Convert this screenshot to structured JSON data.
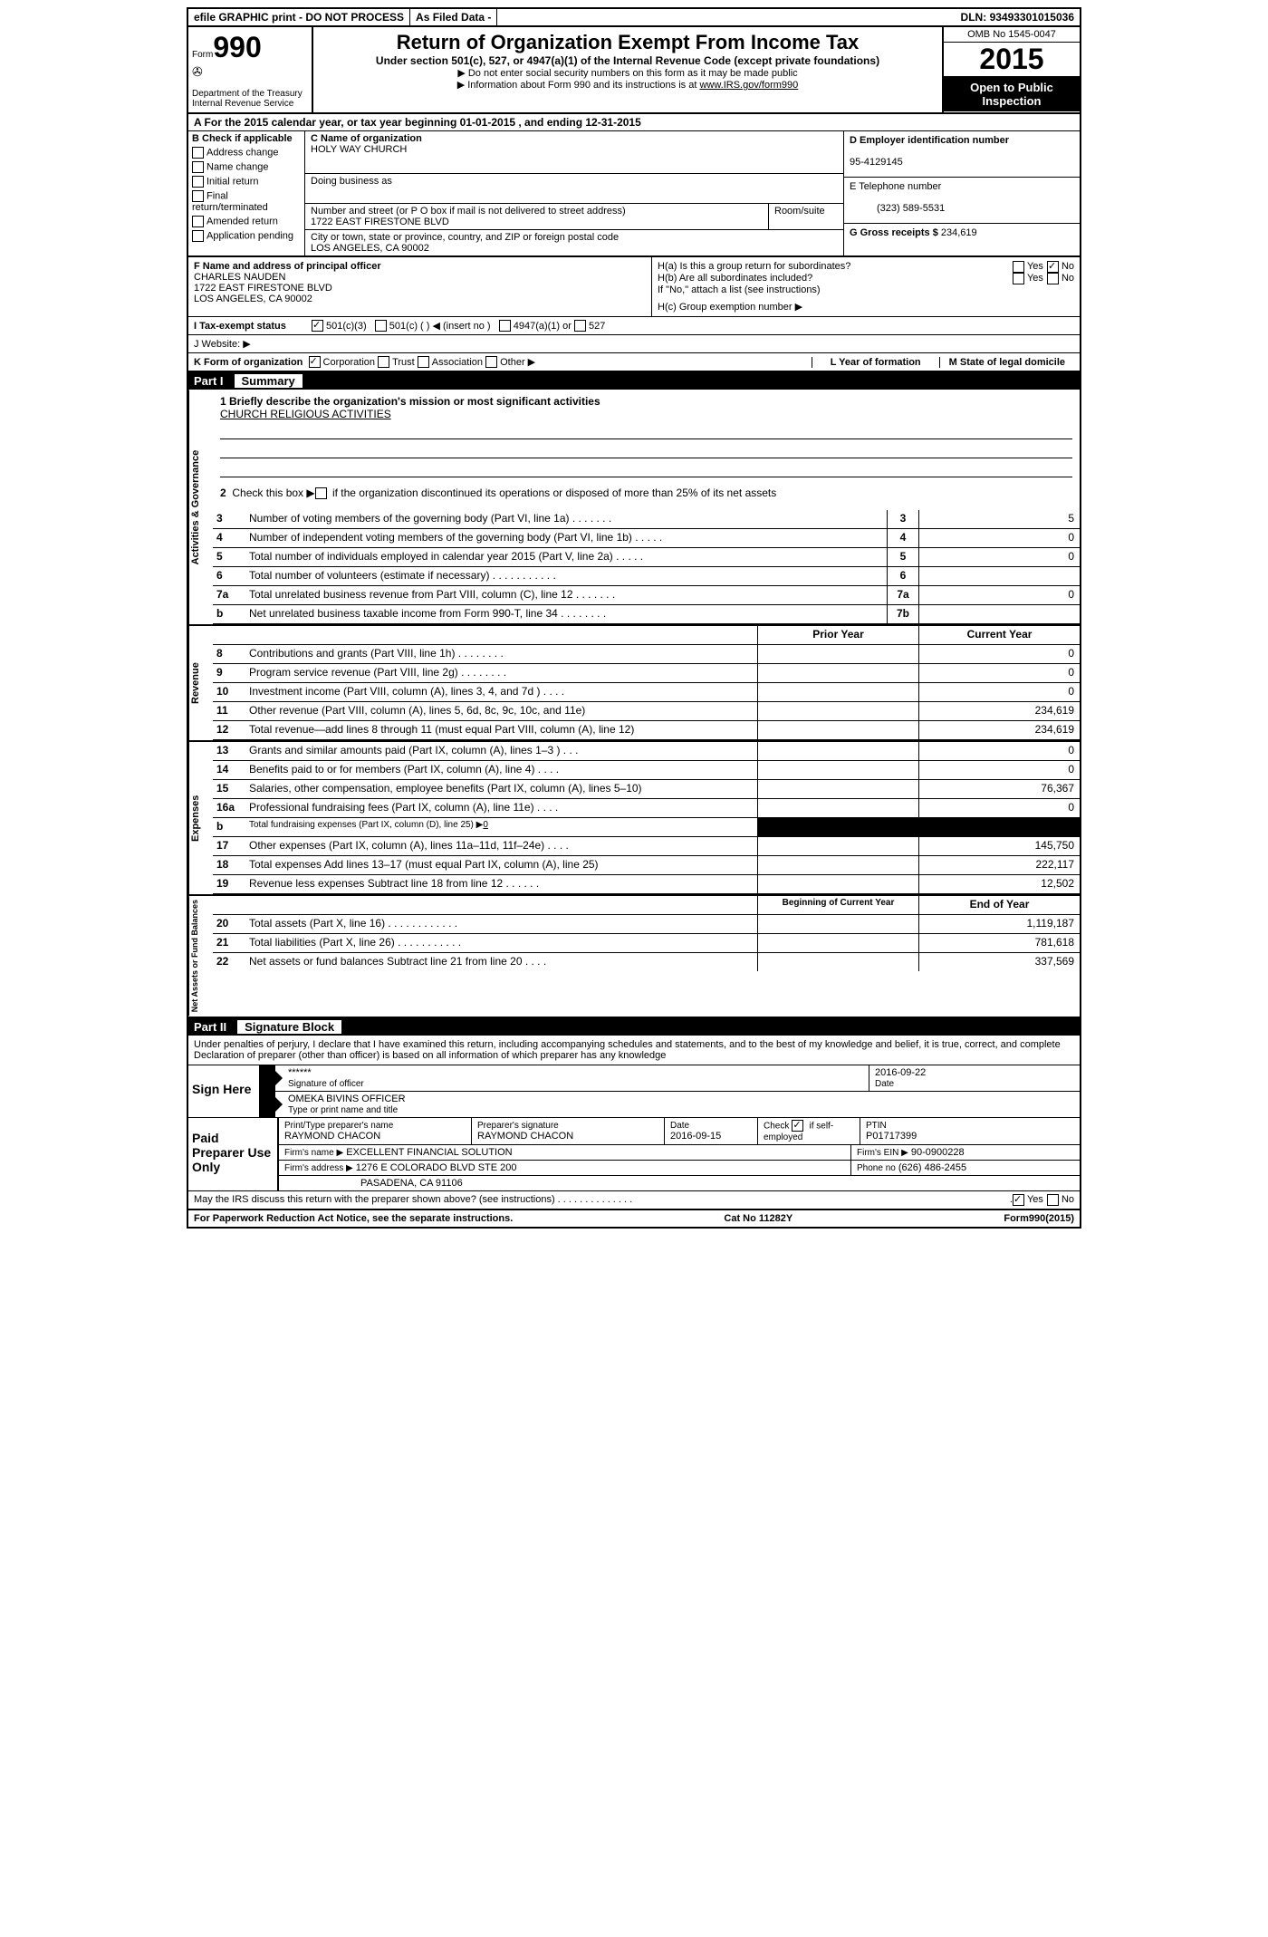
{
  "topbar": {
    "efile": "efile GRAPHIC print - DO NOT PROCESS",
    "asfiled": "As Filed Data -",
    "dln_label": "DLN:",
    "dln": "93493301015036"
  },
  "header": {
    "form_text": "Form",
    "form_num": "990",
    "dept": "Department of the Treasury",
    "irs": "Internal Revenue Service",
    "title": "Return of Organization Exempt From Income Tax",
    "subtitle": "Under section 501(c), 527, or 4947(a)(1) of the Internal Revenue Code (except private foundations)",
    "note1": "▶ Do not enter social security numbers on this form as it may be made public",
    "note2": "▶ Information about Form 990 and its instructions is at ",
    "note2_link": "www.IRS.gov/form990",
    "omb": "OMB No 1545-0047",
    "year": "2015",
    "open": "Open to Public Inspection"
  },
  "section_a": "A   For the 2015 calendar year, or tax year beginning 01-01-2015    , and ending 12-31-2015",
  "col_b": {
    "label": "B  Check if applicable",
    "items": [
      "Address change",
      "Name change",
      "Initial return",
      "Final return/terminated",
      "Amended return",
      "Application pending"
    ]
  },
  "col_c": {
    "name_label": "C Name of organization",
    "name": "HOLY WAY CHURCH",
    "dba_label": "Doing business as",
    "street_label": "Number and street (or P O  box if mail is not delivered to street address)",
    "room_label": "Room/suite",
    "street": "1722 EAST FIRESTONE BLVD",
    "city_label": "City or town, state or province, country, and ZIP or foreign postal code",
    "city": "LOS ANGELES, CA  90002"
  },
  "col_right": {
    "d_label": "D Employer identification number",
    "ein": "95-4129145",
    "e_label": "E Telephone number",
    "phone": "(323) 589-5531",
    "g_label": "G Gross receipts $",
    "gross": "234,619"
  },
  "principal": {
    "f_label": "F   Name and address of principal officer",
    "name": "CHARLES NAUDEN",
    "street": "1722 EAST FIRESTONE BLVD",
    "city": "LOS ANGELES, CA  90002",
    "ha": "H(a)  Is this a group return for subordinates?",
    "hb": "H(b)  Are all subordinates included?",
    "hnote": "If \"No,\" attach a list  (see instructions)",
    "hc": "H(c)   Group exemption number ▶",
    "yes": "Yes",
    "no": "No"
  },
  "row_i": {
    "label": "I   Tax-exempt status",
    "opt1": "501(c)(3)",
    "opt2": "501(c) (  ) ◀ (insert no )",
    "opt3": "4947(a)(1) or",
    "opt4": "527"
  },
  "row_j": "J  Website: ▶",
  "row_k": {
    "label": "K Form of organization",
    "opts": [
      "Corporation",
      "Trust",
      "Association",
      "Other ▶"
    ],
    "l": "L Year of formation",
    "m": "M State of legal domicile"
  },
  "part1": {
    "num": "Part I",
    "title": "Summary"
  },
  "mission": {
    "q1": "1 Briefly describe the organization's mission or most significant activities",
    "ans": "CHURCH RELIGIOUS ACTIVITIES",
    "q2": "2  Check this box ▶      if the organization discontinued its operations or disposed of more than 25% of its net assets"
  },
  "governance_label": "Activities & Governance",
  "gov_rows": [
    {
      "n": "3",
      "t": "Number of voting members of the governing body (Part VI, line 1a)  .   .   .   .   .   .   .",
      "box": "3",
      "v": "5"
    },
    {
      "n": "4",
      "t": "Number of independent voting members of the governing body (Part VI, line 1b)   .   .   .   .   .",
      "box": "4",
      "v": "0"
    },
    {
      "n": "5",
      "t": "Total number of individuals employed in calendar year 2015 (Part V, line 2a)   .   .   .   .   .",
      "box": "5",
      "v": "0"
    },
    {
      "n": "6",
      "t": "Total number of volunteers (estimate if necessary)   .   .   .   .   .   .   .   .   .   .   .",
      "box": "6",
      "v": ""
    },
    {
      "n": "7a",
      "t": "Total unrelated business revenue from Part VIII, column (C), line 12   .   .   .   .   .   .   .",
      "box": "7a",
      "v": "0"
    },
    {
      "n": "b",
      "t": "Net unrelated business taxable income from Form 990-T, line 34   .   .   .   .   .   .   .   .",
      "box": "7b",
      "v": ""
    }
  ],
  "revenue_label": "Revenue",
  "year_headers": {
    "prior": "Prior Year",
    "current": "Current Year"
  },
  "rev_rows": [
    {
      "n": "8",
      "t": "Contributions and grants (Part VIII, line 1h)   .   .   .   .   .   .   .   .",
      "p": "",
      "c": "0"
    },
    {
      "n": "9",
      "t": "Program service revenue (Part VIII, line 2g)   .   .   .   .   .   .   .   .",
      "p": "",
      "c": "0"
    },
    {
      "n": "10",
      "t": "Investment income (Part VIII, column (A), lines 3, 4, and 7d )   .   .   .   .",
      "p": "",
      "c": "0"
    },
    {
      "n": "11",
      "t": "Other revenue (Part VIII, column (A), lines 5, 6d, 8c, 9c, 10c, and 11e)",
      "p": "",
      "c": "234,619"
    },
    {
      "n": "12",
      "t": "Total revenue—add lines 8 through 11 (must equal Part VIII, column (A), line 12)",
      "p": "",
      "c": "234,619"
    }
  ],
  "expenses_label": "Expenses",
  "exp_rows": [
    {
      "n": "13",
      "t": "Grants and similar amounts paid (Part IX, column (A), lines 1–3 )   .   .   .",
      "p": "",
      "c": "0"
    },
    {
      "n": "14",
      "t": "Benefits paid to or for members (Part IX, column (A), line 4)   .   .   .   .",
      "p": "",
      "c": "0"
    },
    {
      "n": "15",
      "t": "Salaries, other compensation, employee benefits (Part IX, column (A), lines 5–10)",
      "p": "",
      "c": "76,367"
    },
    {
      "n": "16a",
      "t": "Professional fundraising fees (Part IX, column (A), line 11e)   .   .   .   .",
      "p": "",
      "c": "0"
    },
    {
      "n": "b",
      "t": "Total fundraising expenses (Part IX, column (D), line 25) ▶",
      "fund": "0",
      "black": true
    },
    {
      "n": "17",
      "t": "Other expenses (Part IX, column (A), lines 11a–11d, 11f–24e)   .   .   .   .",
      "p": "",
      "c": "145,750"
    },
    {
      "n": "18",
      "t": "Total expenses  Add lines 13–17 (must equal Part IX, column (A), line 25)",
      "p": "",
      "c": "222,117"
    },
    {
      "n": "19",
      "t": "Revenue less expenses  Subtract line 18 from line 12   .   .   .   .   .   .",
      "p": "",
      "c": "12,502"
    }
  ],
  "netassets_label": "Net Assets or Fund Balances",
  "na_headers": {
    "begin": "Beginning of Current Year",
    "end": "End of Year"
  },
  "na_rows": [
    {
      "n": "20",
      "t": "Total assets (Part X, line 16)   .   .   .   .   .   .   .   .   .   .   .   .",
      "p": "",
      "c": "1,119,187"
    },
    {
      "n": "21",
      "t": "Total liabilities (Part X, line 26)   .   .   .   .   .   .   .   .   .   .   .",
      "p": "",
      "c": "781,618"
    },
    {
      "n": "22",
      "t": "Net assets or fund balances  Subtract line 21 from line 20   .   .   .   .",
      "p": "",
      "c": "337,569"
    }
  ],
  "part2": {
    "num": "Part II",
    "title": "Signature Block"
  },
  "perjury": "Under penalties of perjury, I declare that I have examined this return, including accompanying schedules and statements, and to the best of my knowledge and belief, it is true, correct, and complete  Declaration of preparer (other than officer) is based on all information of which preparer has any knowledge",
  "sign": {
    "label": "Sign Here",
    "stars": "******",
    "sig_of": "Signature of officer",
    "date": "2016-09-22",
    "date_label": "Date",
    "officer": "OMEKA BIVINS OFFICER",
    "type_label": "Type or print name and title"
  },
  "preparer": {
    "label": "Paid Preparer Use Only",
    "print_label": "Print/Type preparer's name",
    "print": "RAYMOND CHACON",
    "sig_label": "Preparer's signature",
    "sig": "RAYMOND CHACON",
    "date_label": "Date",
    "date": "2016-09-15",
    "check_label": "Check",
    "self": "if self-employed",
    "ptin_label": "PTIN",
    "ptin": "P01717399",
    "firm_name_label": "Firm's name      ▶",
    "firm_name": "EXCELLENT FINANCIAL SOLUTION",
    "firm_ein_label": "Firm's EIN ▶",
    "firm_ein": "90-0900228",
    "firm_addr_label": "Firm's address ▶",
    "firm_addr": "1276 E COLORADO BLVD STE 200",
    "firm_city": "PASADENA, CA  91106",
    "phone_label": "Phone no",
    "phone": "(626) 486-2455"
  },
  "discuss": {
    "text": "May the IRS discuss this return with the preparer shown above? (see instructions)   .   .   .   .   .   .   .   .   .   .   .   .   .   .",
    "yes": "Yes",
    "no": "No"
  },
  "footer": {
    "left": "For Paperwork Reduction Act Notice, see the separate instructions.",
    "mid": "Cat No  11282Y",
    "right": "Form990(2015)"
  }
}
